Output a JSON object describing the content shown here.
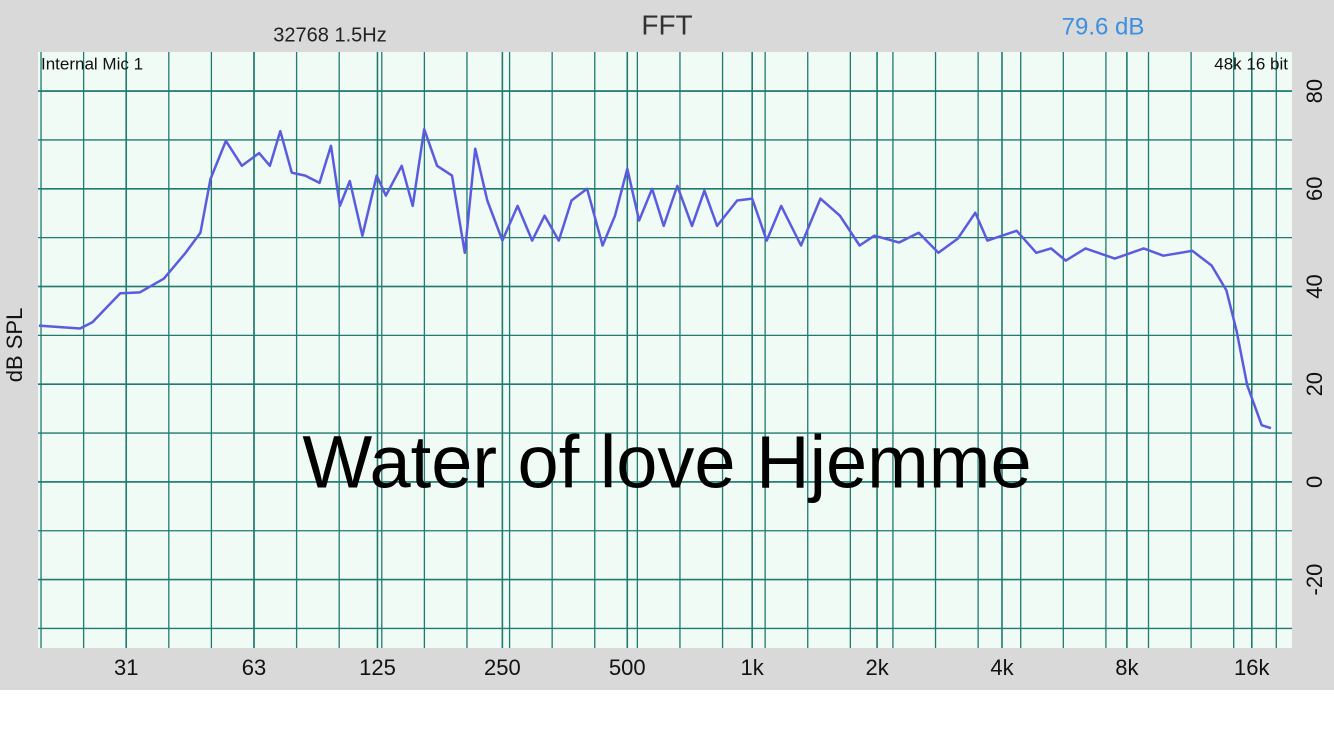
{
  "header": {
    "fft_size": "32768  1.5Hz",
    "title": "FFT",
    "level": "79.6 dB"
  },
  "chart_data": {
    "type": "line",
    "source": "Internal Mic 1",
    "format": "48k 16 bit",
    "y_label": "dB SPL",
    "annotation": "Water of love Hjemme",
    "x_scale": "log",
    "grid": true,
    "color": "#5b5be0",
    "x": [
      19.1,
      24,
      25.7,
      30,
      33.4,
      38.2,
      43.1,
      46.8,
      49.5,
      53.9,
      58.9,
      64.8,
      68.8,
      72.9,
      77.7,
      83.7,
      90.6,
      96.6,
      101.5,
      107.2,
      115,
      124.5,
      131,
      143,
      152,
      162,
      174,
      189,
      203,
      215,
      230,
      250,
      272,
      295,
      316,
      342,
      367,
      400,
      436,
      467,
      500,
      534,
      574,
      612,
      660,
      716,
      767,
      823,
      920,
      1000,
      1084,
      1175,
      1311,
      1460,
      1627,
      1815,
      1970,
      2260,
      2520,
      2810,
      3130,
      3450,
      3690,
      4340,
      4840,
      5250,
      5700,
      6360,
      7480,
      8780,
      9790,
      11500,
      12800,
      13900,
      14700,
      15600,
      16900,
      17800
    ],
    "values": [
      32,
      31.4,
      32.7,
      38.6,
      38.8,
      41.6,
      46.9,
      51,
      62,
      69.8,
      64.7,
      67.3,
      64.7,
      71.8,
      63.3,
      62.7,
      61.2,
      68.8,
      56.5,
      61.6,
      50.4,
      62.7,
      58.6,
      64.7,
      56.5,
      72.2,
      64.7,
      62.7,
      46.9,
      68.2,
      57.6,
      49.4,
      56.5,
      49.4,
      54.5,
      49.4,
      57.6,
      60,
      48.4,
      54.5,
      64.1,
      53.5,
      60,
      52.4,
      60.6,
      52.4,
      59.6,
      52.4,
      57.6,
      58,
      49.4,
      56.5,
      48.4,
      58,
      54.5,
      48.4,
      50.4,
      49,
      51,
      46.9,
      49.8,
      55.1,
      49.4,
      51.4,
      46.9,
      47.8,
      45.3,
      47.8,
      45.7,
      47.8,
      46.3,
      47.3,
      44.3,
      39.2,
      31,
      19.8,
      11.6,
      11
    ],
    "xlim": [
      19,
      20000
    ],
    "xticks": [
      31,
      63,
      125,
      250,
      500,
      {
        "value": 1000,
        "label": "1k"
      },
      {
        "value": 2000,
        "label": "2k"
      },
      {
        "value": 4000,
        "label": "4k"
      },
      {
        "value": 8000,
        "label": "8k"
      },
      {
        "value": 16000,
        "label": "16k"
      }
    ],
    "ylim": [
      -34,
      88
    ],
    "yticks": [
      -20,
      0,
      20,
      40,
      60,
      80
    ]
  }
}
